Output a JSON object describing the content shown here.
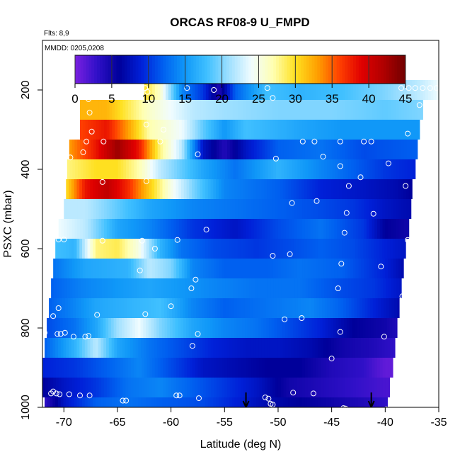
{
  "chart_data": {
    "type": "heatmap",
    "title": "ORCAS RF08-9 U_FMPD",
    "flights_note": "Flts: 8,9",
    "mmdd_note": "MMDD: 0205,0208",
    "xlabel": "Latitude (deg N)",
    "ylabel": "PSXC (mbar)",
    "xlim": [
      -72,
      -35
    ],
    "ylim": [
      1000,
      75
    ],
    "x_ticks": [
      -70,
      -65,
      -60,
      -55,
      -50,
      -45,
      -40,
      -35
    ],
    "y_ticks": [
      200,
      400,
      600,
      800,
      1000
    ],
    "colorbar": {
      "min": 0,
      "max": 45,
      "ticks": [
        0,
        5,
        10,
        15,
        20,
        25,
        30,
        35,
        40,
        45
      ],
      "colors": [
        "#7a20e0",
        "#3010c8",
        "#00009a",
        "#0020d8",
        "#0060f0",
        "#1098f8",
        "#40c0ff",
        "#a0e0ff",
        "#f0fcff",
        "#ffffb0",
        "#ffe020",
        "#ffa000",
        "#ff4000",
        "#e00000",
        "#b00000",
        "#700000"
      ]
    },
    "bands": [
      {
        "p": 200,
        "lat_start": -62.5,
        "lat_end": -35,
        "knots": [
          [
            -62.5,
            30
          ],
          [
            -61,
            26
          ],
          [
            -59,
            14
          ],
          [
            -57,
            10
          ],
          [
            -55.5,
            4
          ],
          [
            -54,
            12
          ],
          [
            -51,
            18
          ],
          [
            -48,
            17
          ],
          [
            -44,
            18
          ],
          [
            -40,
            20
          ],
          [
            -37,
            22
          ],
          [
            -35,
            24
          ]
        ]
      },
      {
        "p": 250,
        "lat_start": -68.5,
        "lat_end": -36.5,
        "knots": [
          [
            -68.5,
            32
          ],
          [
            -66,
            32
          ],
          [
            -62,
            26
          ],
          [
            -58,
            22
          ],
          [
            -55,
            21
          ],
          [
            -50,
            20
          ],
          [
            -45,
            20
          ],
          [
            -40,
            19
          ],
          [
            -36.5,
            20
          ]
        ]
      },
      {
        "p": 300,
        "lat_start": -68.5,
        "lat_end": -36.8,
        "knots": [
          [
            -68.5,
            36
          ],
          [
            -66,
            38
          ],
          [
            -64,
            33
          ],
          [
            -62,
            27
          ],
          [
            -59,
            24
          ],
          [
            -57,
            19
          ],
          [
            -55,
            15
          ],
          [
            -53,
            18
          ],
          [
            -48,
            16
          ],
          [
            -44,
            15
          ],
          [
            -40,
            15
          ],
          [
            -36.8,
            15
          ]
        ]
      },
      {
        "p": 350,
        "lat_start": -69.5,
        "lat_end": -37,
        "knots": [
          [
            -69.5,
            33
          ],
          [
            -67,
            38
          ],
          [
            -65,
            43
          ],
          [
            -63,
            38
          ],
          [
            -61,
            28
          ],
          [
            -59,
            22
          ],
          [
            -57,
            8
          ],
          [
            -55,
            4
          ],
          [
            -53,
            8
          ],
          [
            -50,
            12
          ],
          [
            -46,
            13
          ],
          [
            -42,
            11
          ],
          [
            -37,
            12
          ]
        ]
      },
      {
        "p": 400,
        "lat_start": -69.7,
        "lat_end": -37.2,
        "knots": [
          [
            -69.7,
            28
          ],
          [
            -67,
            30
          ],
          [
            -65,
            30
          ],
          [
            -63,
            27
          ],
          [
            -61,
            22
          ],
          [
            -57,
            16
          ],
          [
            -54,
            13
          ],
          [
            -50,
            17
          ],
          [
            -46,
            14
          ],
          [
            -43,
            12
          ],
          [
            -40,
            10
          ],
          [
            -37.2,
            9
          ]
        ]
      },
      {
        "p": 450,
        "lat_start": -69.8,
        "lat_end": -37.5,
        "knots": [
          [
            -69.8,
            30
          ],
          [
            -68,
            38
          ],
          [
            -66,
            41
          ],
          [
            -64,
            37
          ],
          [
            -62,
            31
          ],
          [
            -60,
            25
          ],
          [
            -58,
            20
          ],
          [
            -55,
            14
          ],
          [
            -50,
            12
          ],
          [
            -46,
            9
          ],
          [
            -42,
            8
          ],
          [
            -39,
            7
          ],
          [
            -37.5,
            6
          ]
        ]
      },
      {
        "p": 500,
        "lat_start": -70,
        "lat_end": -37.6,
        "knots": [
          [
            -70,
            22
          ],
          [
            -68,
            22
          ],
          [
            -65,
            19
          ],
          [
            -62,
            16
          ],
          [
            -58,
            14
          ],
          [
            -54,
            13
          ],
          [
            -50,
            12
          ],
          [
            -46,
            11
          ],
          [
            -43,
            10
          ],
          [
            -40,
            8
          ],
          [
            -37.6,
            7
          ]
        ]
      },
      {
        "p": 550,
        "lat_start": -70.5,
        "lat_end": -37.8,
        "knots": [
          [
            -70.5,
            24
          ],
          [
            -68,
            22
          ],
          [
            -65,
            16
          ],
          [
            -62,
            14
          ],
          [
            -58,
            10
          ],
          [
            -54,
            8
          ],
          [
            -50,
            11
          ],
          [
            -46,
            13
          ],
          [
            -42,
            10
          ],
          [
            -40,
            6
          ],
          [
            -37.8,
            5
          ]
        ]
      },
      {
        "p": 600,
        "lat_start": -70.8,
        "lat_end": -38.1,
        "knots": [
          [
            -70.8,
            18
          ],
          [
            -69,
            17
          ],
          [
            -67,
            28
          ],
          [
            -65,
            29
          ],
          [
            -63,
            25
          ],
          [
            -61,
            17
          ],
          [
            -59,
            13
          ],
          [
            -56,
            11
          ],
          [
            -52,
            10
          ],
          [
            -49,
            11
          ],
          [
            -46,
            12
          ],
          [
            -43,
            11
          ],
          [
            -40,
            9
          ],
          [
            -38.1,
            8
          ]
        ]
      },
      {
        "p": 650,
        "lat_start": -71,
        "lat_end": -38.3,
        "knots": [
          [
            -71,
            13
          ],
          [
            -68,
            16
          ],
          [
            -64,
            17
          ],
          [
            -62,
            22
          ],
          [
            -60,
            20
          ],
          [
            -58,
            14
          ],
          [
            -55,
            12
          ],
          [
            -51,
            12
          ],
          [
            -48,
            13
          ],
          [
            -44,
            12
          ],
          [
            -40,
            9
          ],
          [
            -38.3,
            7
          ]
        ]
      },
      {
        "p": 700,
        "lat_start": -71.2,
        "lat_end": -38.5,
        "knots": [
          [
            -71.2,
            12
          ],
          [
            -68,
            14
          ],
          [
            -65,
            15
          ],
          [
            -62,
            16
          ],
          [
            -59,
            15
          ],
          [
            -56,
            14
          ],
          [
            -52,
            13
          ],
          [
            -48,
            13
          ],
          [
            -44,
            11
          ],
          [
            -41,
            10
          ],
          [
            -38.5,
            8
          ]
        ]
      },
      {
        "p": 750,
        "lat_start": -71.4,
        "lat_end": -38.7,
        "knots": [
          [
            -71.4,
            12
          ],
          [
            -69,
            14
          ],
          [
            -67,
            16
          ],
          [
            -64,
            17
          ],
          [
            -61,
            18
          ],
          [
            -58,
            14
          ],
          [
            -55,
            12
          ],
          [
            -51,
            13
          ],
          [
            -47,
            14
          ],
          [
            -44,
            12
          ],
          [
            -41,
            9
          ],
          [
            -38.7,
            7
          ]
        ]
      },
      {
        "p": 800,
        "lat_start": -71.6,
        "lat_end": -38.9,
        "knots": [
          [
            -71.6,
            11
          ],
          [
            -69,
            13
          ],
          [
            -67,
            16
          ],
          [
            -65,
            21
          ],
          [
            -63,
            24
          ],
          [
            -61,
            20
          ],
          [
            -58,
            16
          ],
          [
            -55,
            14
          ],
          [
            -52,
            13
          ],
          [
            -49,
            11
          ],
          [
            -46,
            9
          ],
          [
            -43,
            6
          ],
          [
            -40,
            5
          ],
          [
            -38.9,
            4
          ]
        ]
      },
      {
        "p": 850,
        "lat_start": -71.8,
        "lat_end": -39.1,
        "knots": [
          [
            -71.8,
            12
          ],
          [
            -69,
            17
          ],
          [
            -67,
            22
          ],
          [
            -65,
            16
          ],
          [
            -62,
            13
          ],
          [
            -59,
            11
          ],
          [
            -56,
            9
          ],
          [
            -53,
            8
          ],
          [
            -50,
            8
          ],
          [
            -47,
            7
          ],
          [
            -44,
            5
          ],
          [
            -41,
            4
          ],
          [
            -39.1,
            3
          ]
        ]
      },
      {
        "p": 900,
        "lat_start": -72,
        "lat_end": -39.3,
        "knots": [
          [
            -72,
            9
          ],
          [
            -69,
            10
          ],
          [
            -66,
            12
          ],
          [
            -63,
            14
          ],
          [
            -60,
            11
          ],
          [
            -57,
            8
          ],
          [
            -54,
            7
          ],
          [
            -51,
            6
          ],
          [
            -48,
            6
          ],
          [
            -45,
            4
          ],
          [
            -42,
            3
          ],
          [
            -40,
            1
          ],
          [
            -39.3,
            1
          ]
        ]
      },
      {
        "p": 950,
        "lat_start": -72,
        "lat_end": -39.6,
        "knots": [
          [
            -72,
            6
          ],
          [
            -70,
            8
          ],
          [
            -67,
            10
          ],
          [
            -64,
            13
          ],
          [
            -61,
            14
          ],
          [
            -58,
            12
          ],
          [
            -55,
            10
          ],
          [
            -52,
            8
          ],
          [
            -49,
            5
          ],
          [
            -46,
            4
          ],
          [
            -43,
            3
          ],
          [
            -40,
            2
          ],
          [
            -39.6,
            2
          ]
        ]
      },
      {
        "p": 1000,
        "lat_start": -71.8,
        "lat_end": -39.8,
        "knots": [
          [
            -71.8,
            3
          ],
          [
            -70,
            8
          ],
          [
            -67,
            12
          ],
          [
            -64,
            13
          ],
          [
            -61,
            12
          ],
          [
            -57,
            11
          ],
          [
            -54,
            9
          ],
          [
            -51,
            7
          ],
          [
            -48,
            6
          ],
          [
            -45,
            5
          ],
          [
            -42,
            4
          ],
          [
            -39.8,
            3
          ]
        ]
      }
    ],
    "measurement_points": [
      [
        -62.4,
        195
      ],
      [
        -62.2,
        205
      ],
      [
        -58.5,
        195
      ],
      [
        -56,
        200
      ],
      [
        -51,
        195
      ],
      [
        -50.5,
        220
      ],
      [
        -38.5,
        195
      ],
      [
        -37.8,
        195
      ],
      [
        -37.2,
        195
      ],
      [
        -36.5,
        195
      ],
      [
        -35.8,
        195
      ],
      [
        -35.2,
        195
      ],
      [
        -36.8,
        238
      ],
      [
        -67.7,
        223
      ],
      [
        -67.6,
        257
      ],
      [
        -66.3,
        330
      ],
      [
        -62.3,
        287
      ],
      [
        -61,
        330
      ],
      [
        -60.7,
        300
      ],
      [
        -47.7,
        330
      ],
      [
        -46.6,
        330
      ],
      [
        -44.2,
        330
      ],
      [
        -42,
        330
      ],
      [
        -41.3,
        330
      ],
      [
        -37.9,
        310
      ],
      [
        -67.4,
        305
      ],
      [
        -67.9,
        330
      ],
      [
        -68.2,
        357
      ],
      [
        -69.4,
        370
      ],
      [
        -57.5,
        362
      ],
      [
        -50.2,
        373
      ],
      [
        -45.8,
        368
      ],
      [
        -44.2,
        392
      ],
      [
        -42.3,
        420
      ],
      [
        -39.7,
        385
      ],
      [
        -38.1,
        442
      ],
      [
        -43.4,
        442
      ],
      [
        -66.4,
        432
      ],
      [
        -62.3,
        430
      ],
      [
        -48.7,
        485
      ],
      [
        -46.4,
        480
      ],
      [
        -43.6,
        510
      ],
      [
        -41.1,
        512
      ],
      [
        -37.9,
        578
      ],
      [
        -56.7,
        552
      ],
      [
        -43.8,
        560
      ],
      [
        -70,
        577
      ],
      [
        -70.5,
        577
      ],
      [
        -59.4,
        578
      ],
      [
        -62.7,
        580
      ],
      [
        -66.4,
        580
      ],
      [
        -61.5,
        600
      ],
      [
        -50.5,
        618
      ],
      [
        -48.9,
        614
      ],
      [
        -44.1,
        638
      ],
      [
        -40.4,
        645
      ],
      [
        -62.9,
        655
      ],
      [
        -57.7,
        678
      ],
      [
        -58.1,
        700
      ],
      [
        -44.4,
        700
      ],
      [
        -38.4,
        720
      ],
      [
        -60,
        745
      ],
      [
        -70.5,
        750
      ],
      [
        -71,
        770
      ],
      [
        -66.9,
        767
      ],
      [
        -62.4,
        765
      ],
      [
        -49.4,
        778
      ],
      [
        -47.8,
        775
      ],
      [
        -44.2,
        810
      ],
      [
        -40.1,
        822
      ],
      [
        -57.5,
        815
      ],
      [
        -58,
        845
      ],
      [
        -71.8,
        812
      ],
      [
        -70.6,
        815
      ],
      [
        -69.9,
        812
      ],
      [
        -70.3,
        815
      ],
      [
        -69.1,
        822
      ],
      [
        -68,
        822
      ],
      [
        -67.7,
        820
      ],
      [
        -45,
        877
      ],
      [
        -71.2,
        965
      ],
      [
        -71,
        960
      ],
      [
        -70.7,
        965
      ],
      [
        -70.4,
        967
      ],
      [
        -69.5,
        967
      ],
      [
        -68.5,
        970
      ],
      [
        -67.6,
        970
      ],
      [
        -64.5,
        983
      ],
      [
        -64.2,
        983
      ],
      [
        -59.5,
        970
      ],
      [
        -59.2,
        970
      ],
      [
        -57.4,
        977
      ],
      [
        -51.2,
        975
      ],
      [
        -50.9,
        978
      ],
      [
        -50.7,
        991
      ],
      [
        -50.5,
        993
      ],
      [
        -48.6,
        963
      ],
      [
        -46.7,
        965
      ],
      [
        -43.9,
        1002
      ],
      [
        -43.7,
        1003
      ],
      [
        -39.9,
        1005
      ]
    ],
    "arrows": [
      {
        "lat": -53,
        "label": "down-arrow"
      },
      {
        "lat": -41.3,
        "label": "down-arrow"
      }
    ]
  }
}
